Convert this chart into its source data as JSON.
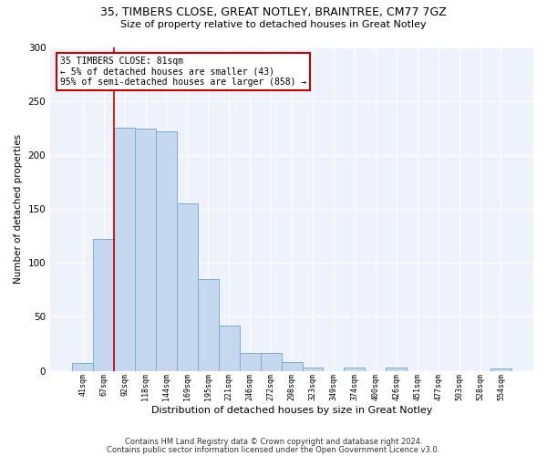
{
  "title1": "35, TIMBERS CLOSE, GREAT NOTLEY, BRAINTREE, CM77 7GZ",
  "title2": "Size of property relative to detached houses in Great Notley",
  "xlabel": "Distribution of detached houses by size in Great Notley",
  "ylabel": "Number of detached properties",
  "categories": [
    "41sqm",
    "67sqm",
    "92sqm",
    "118sqm",
    "144sqm",
    "169sqm",
    "195sqm",
    "221sqm",
    "246sqm",
    "272sqm",
    "298sqm",
    "323sqm",
    "349sqm",
    "374sqm",
    "400sqm",
    "426sqm",
    "451sqm",
    "477sqm",
    "503sqm",
    "528sqm",
    "554sqm"
  ],
  "values": [
    7,
    122,
    225,
    224,
    222,
    155,
    85,
    42,
    17,
    17,
    8,
    3,
    0,
    3,
    0,
    3,
    0,
    0,
    0,
    0,
    2
  ],
  "bar_color": "#C5D8F0",
  "bar_edge_color": "#7BADD6",
  "vline_x": 1.5,
  "vline_color": "#CC0000",
  "annotation_text": "35 TIMBERS CLOSE: 81sqm\n← 5% of detached houses are smaller (43)\n95% of semi-detached houses are larger (858) →",
  "annotation_box_color": "#ffffff",
  "annotation_box_edge": "#CC0000",
  "ylim": [
    0,
    300
  ],
  "yticks": [
    0,
    50,
    100,
    150,
    200,
    250,
    300
  ],
  "footer1": "Contains HM Land Registry data © Crown copyright and database right 2024.",
  "footer2": "Contains public sector information licensed under the Open Government Licence v3.0.",
  "bg_color": "#ffffff",
  "plot_bg_color": "#EEF2FA"
}
